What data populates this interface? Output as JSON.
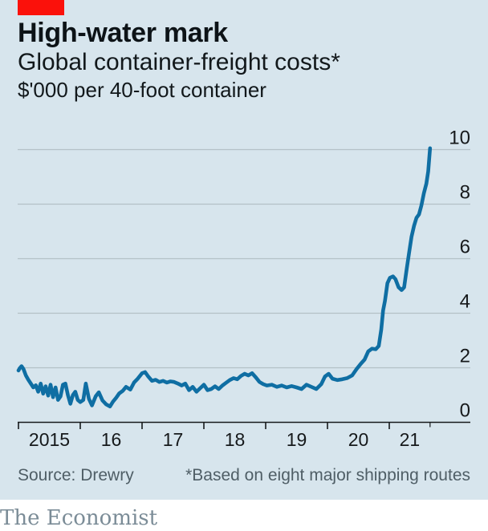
{
  "header": {
    "title": "High-water mark",
    "subtitle": "Global container-freight costs*",
    "unit": "$'000 per 40-foot container"
  },
  "footer": {
    "source": "Source: Drewry",
    "footnote": "*Based on eight major shipping routes"
  },
  "branding": {
    "wordmark": "The Economist"
  },
  "colors": {
    "background": "#d7e5ed",
    "red_tab": "#fb110b",
    "line": "#0f6ea3",
    "gridline": "#b4c1c7",
    "axis": "#16191b",
    "tick_text": "#16191b",
    "muted_text": "#4f5e66",
    "wordmark": "#7b8c97"
  },
  "chart_data": {
    "type": "line",
    "title": "High-water mark",
    "subtitle": "Global container-freight costs*",
    "ylabel": "$'000 per 40-foot container",
    "grid": true,
    "legend": "none",
    "ylim": [
      0,
      10
    ],
    "y_ticks": [
      0,
      2,
      4,
      6,
      8,
      10
    ],
    "x_tick_years": [
      2015,
      2016,
      2017,
      2018,
      2019,
      2020,
      2021
    ],
    "x_tick_labels": [
      "2015",
      "16",
      "17",
      "18",
      "19",
      "20",
      "21"
    ],
    "x_end": 2021.66,
    "series": [
      {
        "name": "Global container-freight costs ($'000 per 40-foot container)",
        "points": [
          [
            2015.0,
            1.9
          ],
          [
            2015.02,
            1.98
          ],
          [
            2015.05,
            2.06
          ],
          [
            2015.08,
            1.96
          ],
          [
            2015.12,
            1.72
          ],
          [
            2015.16,
            1.56
          ],
          [
            2015.2,
            1.42
          ],
          [
            2015.24,
            1.28
          ],
          [
            2015.28,
            1.36
          ],
          [
            2015.32,
            1.12
          ],
          [
            2015.36,
            1.42
          ],
          [
            2015.4,
            1.05
          ],
          [
            2015.44,
            1.32
          ],
          [
            2015.48,
            0.98
          ],
          [
            2015.52,
            1.38
          ],
          [
            2015.56,
            0.92
          ],
          [
            2015.6,
            1.28
          ],
          [
            2015.64,
            0.82
          ],
          [
            2015.68,
            0.95
          ],
          [
            2015.72,
            1.38
          ],
          [
            2015.76,
            1.42
          ],
          [
            2015.8,
            1.0
          ],
          [
            2015.84,
            0.68
          ],
          [
            2015.88,
            1.0
          ],
          [
            2015.92,
            1.12
          ],
          [
            2015.96,
            0.82
          ],
          [
            2016.0,
            0.74
          ],
          [
            2016.05,
            0.82
          ],
          [
            2016.09,
            1.42
          ],
          [
            2016.14,
            0.86
          ],
          [
            2016.19,
            0.62
          ],
          [
            2016.25,
            0.96
          ],
          [
            2016.3,
            1.1
          ],
          [
            2016.36,
            0.8
          ],
          [
            2016.42,
            0.66
          ],
          [
            2016.48,
            0.58
          ],
          [
            2016.53,
            0.76
          ],
          [
            2016.58,
            0.9
          ],
          [
            2016.63,
            1.06
          ],
          [
            2016.69,
            1.16
          ],
          [
            2016.74,
            1.3
          ],
          [
            2016.81,
            1.2
          ],
          [
            2016.87,
            1.46
          ],
          [
            2016.93,
            1.6
          ],
          [
            2017.0,
            1.8
          ],
          [
            2017.05,
            1.84
          ],
          [
            2017.1,
            1.68
          ],
          [
            2017.16,
            1.52
          ],
          [
            2017.22,
            1.56
          ],
          [
            2017.28,
            1.48
          ],
          [
            2017.34,
            1.52
          ],
          [
            2017.4,
            1.46
          ],
          [
            2017.46,
            1.5
          ],
          [
            2017.52,
            1.48
          ],
          [
            2017.58,
            1.42
          ],
          [
            2017.64,
            1.35
          ],
          [
            2017.7,
            1.42
          ],
          [
            2017.76,
            1.18
          ],
          [
            2017.82,
            1.3
          ],
          [
            2017.88,
            1.12
          ],
          [
            2017.94,
            1.25
          ],
          [
            2018.0,
            1.38
          ],
          [
            2018.06,
            1.18
          ],
          [
            2018.12,
            1.22
          ],
          [
            2018.18,
            1.32
          ],
          [
            2018.24,
            1.22
          ],
          [
            2018.3,
            1.35
          ],
          [
            2018.36,
            1.45
          ],
          [
            2018.42,
            1.55
          ],
          [
            2018.48,
            1.62
          ],
          [
            2018.54,
            1.58
          ],
          [
            2018.6,
            1.7
          ],
          [
            2018.66,
            1.78
          ],
          [
            2018.72,
            1.72
          ],
          [
            2018.78,
            1.8
          ],
          [
            2018.84,
            1.65
          ],
          [
            2018.9,
            1.48
          ],
          [
            2018.96,
            1.4
          ],
          [
            2019.02,
            1.35
          ],
          [
            2019.1,
            1.38
          ],
          [
            2019.18,
            1.3
          ],
          [
            2019.26,
            1.35
          ],
          [
            2019.34,
            1.28
          ],
          [
            2019.42,
            1.33
          ],
          [
            2019.5,
            1.28
          ],
          [
            2019.58,
            1.22
          ],
          [
            2019.66,
            1.38
          ],
          [
            2019.74,
            1.3
          ],
          [
            2019.82,
            1.22
          ],
          [
            2019.9,
            1.4
          ],
          [
            2019.96,
            1.68
          ],
          [
            2020.02,
            1.78
          ],
          [
            2020.08,
            1.6
          ],
          [
            2020.16,
            1.55
          ],
          [
            2020.24,
            1.58
          ],
          [
            2020.32,
            1.62
          ],
          [
            2020.4,
            1.72
          ],
          [
            2020.47,
            1.95
          ],
          [
            2020.54,
            2.15
          ],
          [
            2020.6,
            2.3
          ],
          [
            2020.66,
            2.6
          ],
          [
            2020.72,
            2.7
          ],
          [
            2020.78,
            2.68
          ],
          [
            2020.83,
            2.8
          ],
          [
            2020.87,
            3.4
          ],
          [
            2020.9,
            4.1
          ],
          [
            2020.93,
            4.45
          ],
          [
            2020.97,
            5.1
          ],
          [
            2021.01,
            5.3
          ],
          [
            2021.06,
            5.35
          ],
          [
            2021.1,
            5.25
          ],
          [
            2021.15,
            4.95
          ],
          [
            2021.2,
            4.85
          ],
          [
            2021.24,
            4.95
          ],
          [
            2021.28,
            5.6
          ],
          [
            2021.32,
            6.2
          ],
          [
            2021.36,
            6.8
          ],
          [
            2021.4,
            7.2
          ],
          [
            2021.44,
            7.5
          ],
          [
            2021.48,
            7.62
          ],
          [
            2021.52,
            7.95
          ],
          [
            2021.56,
            8.4
          ],
          [
            2021.6,
            8.75
          ],
          [
            2021.63,
            9.2
          ],
          [
            2021.66,
            10.05
          ]
        ]
      }
    ]
  }
}
